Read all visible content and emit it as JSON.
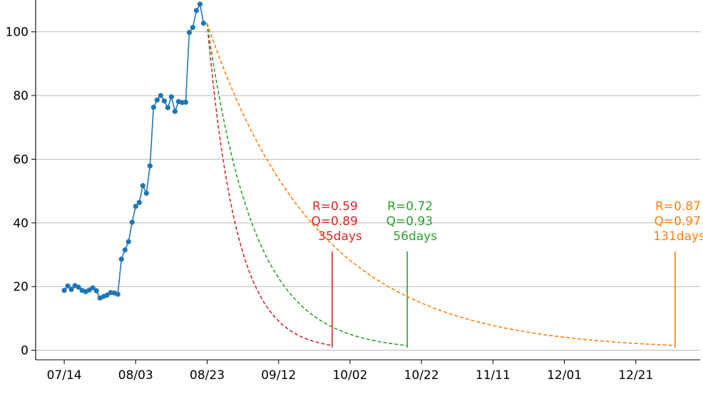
{
  "chart_data": {
    "type": "line",
    "title": "",
    "xlabel": "",
    "ylabel": "",
    "x_tick_labels": [
      "07/14",
      "08/03",
      "08/23",
      "09/12",
      "10/02",
      "10/22",
      "11/11",
      "12/01",
      "12/21"
    ],
    "x_tick_days": [
      0,
      20,
      40,
      60,
      80,
      100,
      120,
      140,
      160
    ],
    "x_range_days": [
      -8,
      178
    ],
    "y_ticks": [
      0,
      20,
      40,
      60,
      80,
      100
    ],
    "ylim": [
      -3,
      110
    ],
    "grid": "horizontal",
    "colors": {
      "observed": "#1f77b4",
      "red": "#d62728",
      "green": "#2ca02c",
      "orange": "#ff7f0e"
    },
    "observed": {
      "x_days": [
        0,
        1,
        2,
        3,
        4,
        5,
        6,
        7,
        8,
        9,
        10,
        11,
        12,
        13,
        14,
        15,
        16,
        17,
        18,
        19,
        20,
        21,
        22,
        23,
        24,
        25,
        26,
        27,
        28,
        29,
        30,
        31,
        32,
        33,
        34,
        35,
        36,
        37,
        38,
        39
      ],
      "y": [
        18.8,
        20.2,
        19.1,
        20.3,
        19.8,
        18.8,
        18.4,
        18.9,
        19.6,
        18.7,
        16.4,
        16.9,
        17.3,
        18.1,
        18.0,
        17.6,
        28.6,
        31.5,
        34.1,
        40.2,
        45.2,
        46.4,
        51.7,
        49.3,
        57.9,
        76.3,
        78.6,
        80.0,
        78.3,
        76.2,
        79.6,
        75.0,
        78.1,
        77.8,
        77.9,
        99.8,
        101.4,
        106.7,
        108.7,
        102.7
      ]
    },
    "projections": [
      {
        "color_key": "red",
        "start_day": 40,
        "start_y": 102.7,
        "days": 35,
        "end_y": 1.5,
        "R": "R=0.59",
        "Q": "Q=0.89",
        "days_label": "35days"
      },
      {
        "color_key": "green",
        "start_day": 40,
        "start_y": 102.7,
        "days": 56,
        "end_y": 1.5,
        "R": "R=0.72",
        "Q": "Q=0.93",
        "days_label": "56days"
      },
      {
        "color_key": "orange",
        "start_day": 40,
        "start_y": 102.7,
        "days": 131,
        "end_y": 1.5,
        "R": "R=0.87",
        "Q": "Q=0.97",
        "days_label": "131days"
      }
    ]
  }
}
